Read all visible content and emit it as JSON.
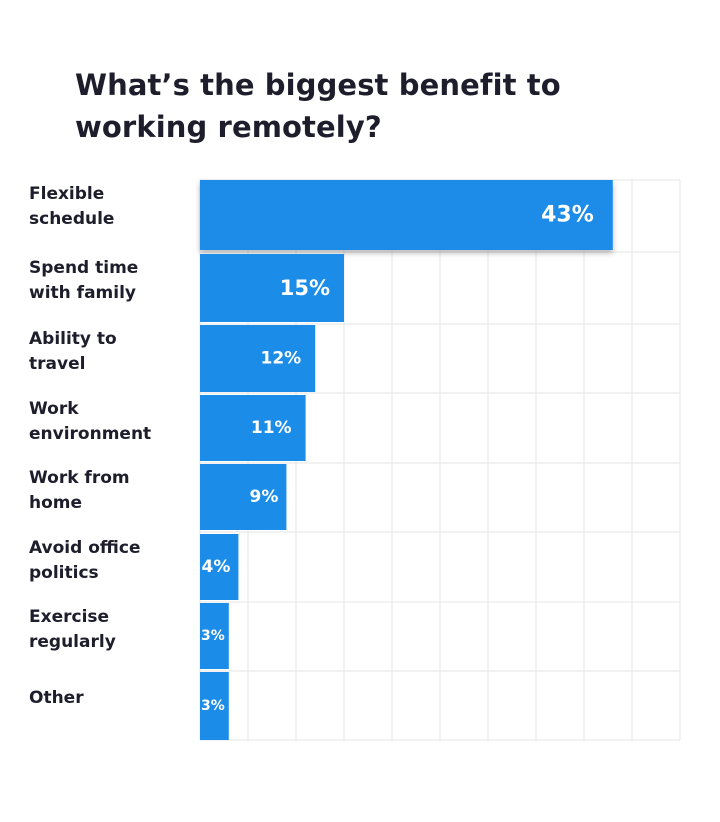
{
  "title": "What’s the biggest benefit to working remotely?",
  "chart_data": {
    "type": "bar",
    "orientation": "horizontal",
    "categories": [
      [
        "Flexible",
        "schedule"
      ],
      [
        "Spend time",
        "with family"
      ],
      [
        "Ability to",
        "travel"
      ],
      [
        "Work",
        "environment"
      ],
      [
        "Work from",
        "home"
      ],
      [
        "Avoid office",
        "politics"
      ],
      [
        "Exercise",
        "regularly"
      ],
      [
        "Other"
      ]
    ],
    "values": [
      43,
      15,
      12,
      11,
      9,
      4,
      3,
      3
    ],
    "value_labels": [
      "43%",
      "15%",
      "12%",
      "11%",
      "9%",
      "4%",
      "3%",
      "3%"
    ],
    "xlim": [
      0,
      50
    ],
    "grid": true,
    "bar_color": "#1b8ce8",
    "grid_color": "#e6e6e6",
    "highlighted_category_index": 0
  }
}
